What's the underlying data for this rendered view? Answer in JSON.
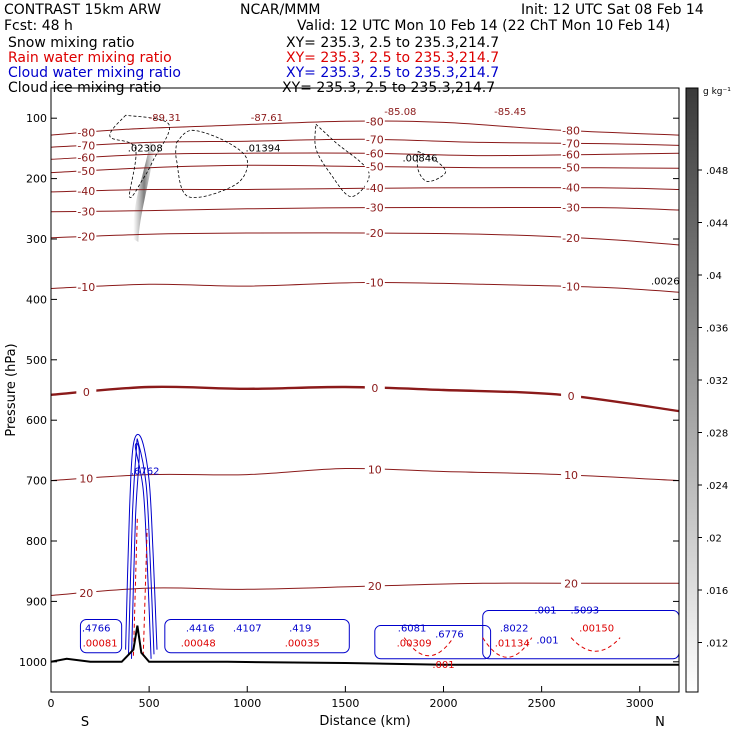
{
  "header": {
    "title_left": "CONTRAST 15km ARW",
    "fcst": "Fcst:    48 h",
    "center_top": "NCAR/MMM",
    "init": "Init: 12 UTC Sat 08 Feb 14",
    "valid": "Valid: 12 UTC Mon 10 Feb 14 (22 ChT Mon 10 Feb 14)"
  },
  "fields": [
    {
      "label": "Snow mixing ratio",
      "xy": "XY= 235.3,  2.5 to 235.3,214.7",
      "color": "#000000"
    },
    {
      "label": "Rain water mixing ratio",
      "xy": "XY= 235.3,  2.5 to 235.3,214.7",
      "color": "#dd0000"
    },
    {
      "label": "Cloud water mixing ratio",
      "xy": "XY= 235.3,  2.5 to 235.3,214.7",
      "color": "#0000cc"
    },
    {
      "label": "Cloud ice mixing ratio",
      "xy": "XY= 235.3,  2.5 to 235.3,214.7",
      "color": "#000000"
    }
  ],
  "colorbar": {
    "unit": "g kg⁻¹",
    "ticks": [
      ".048",
      ".044",
      ".04",
      ".036",
      ".032",
      ".028",
      ".024",
      ".02",
      ".016",
      ".012"
    ]
  },
  "chart_data": {
    "type": "cross-section",
    "xlabel": "Distance (km)",
    "ylabel": "Pressure (hPa)",
    "xlim": [
      0,
      3200
    ],
    "ylim": [
      1050,
      50
    ],
    "y_scale": "linear-inverted",
    "x_ticks": [
      0,
      500,
      1000,
      1500,
      2000,
      2500,
      3000
    ],
    "y_ticks": [
      100,
      200,
      300,
      400,
      500,
      600,
      700,
      800,
      900,
      1000
    ],
    "x_end_labels": [
      "S",
      "N"
    ],
    "temperature_contours": [
      {
        "label": "-80",
        "points": [
          [
            0,
            128
          ],
          [
            400,
            118
          ],
          [
            900,
            112
          ],
          [
            1500,
            105
          ],
          [
            2000,
            107
          ],
          [
            2600,
            120
          ],
          [
            3200,
            128
          ]
        ]
      },
      {
        "label": "-70",
        "points": [
          [
            0,
            148
          ],
          [
            500,
            140
          ],
          [
            1000,
            138
          ],
          [
            1600,
            135
          ],
          [
            2200,
            140
          ],
          [
            2800,
            142
          ],
          [
            3200,
            145
          ]
        ]
      },
      {
        "label": "-60",
        "points": [
          [
            0,
            168
          ],
          [
            500,
            160
          ],
          [
            1000,
            158
          ],
          [
            1600,
            158
          ],
          [
            2200,
            162
          ],
          [
            2800,
            160
          ],
          [
            3200,
            158
          ]
        ]
      },
      {
        "label": "-50",
        "points": [
          [
            0,
            190
          ],
          [
            500,
            182
          ],
          [
            1000,
            178
          ],
          [
            1600,
            180
          ],
          [
            2200,
            182
          ],
          [
            2800,
            182
          ],
          [
            3200,
            183
          ]
        ]
      },
      {
        "label": "-40",
        "points": [
          [
            0,
            222
          ],
          [
            500,
            218
          ],
          [
            1000,
            218
          ],
          [
            1600,
            216
          ],
          [
            2200,
            215
          ],
          [
            2800,
            215
          ],
          [
            3200,
            218
          ]
        ]
      },
      {
        "label": "-30",
        "points": [
          [
            0,
            255
          ],
          [
            500,
            253
          ],
          [
            1000,
            250
          ],
          [
            1600,
            248
          ],
          [
            2200,
            248
          ],
          [
            2800,
            248
          ],
          [
            3200,
            252
          ]
        ]
      },
      {
        "label": "-20",
        "points": [
          [
            0,
            298
          ],
          [
            500,
            292
          ],
          [
            1000,
            290
          ],
          [
            1600,
            290
          ],
          [
            2200,
            292
          ],
          [
            2800,
            300
          ],
          [
            3200,
            310
          ]
        ]
      },
      {
        "label": "-10",
        "points": [
          [
            0,
            382
          ],
          [
            500,
            375
          ],
          [
            1000,
            378
          ],
          [
            1600,
            372
          ],
          [
            2200,
            375
          ],
          [
            2800,
            380
          ],
          [
            3200,
            388
          ]
        ]
      },
      {
        "label": "0",
        "points": [
          [
            0,
            558
          ],
          [
            500,
            545
          ],
          [
            1000,
            548
          ],
          [
            1500,
            545
          ],
          [
            2000,
            550
          ],
          [
            2600,
            558
          ],
          [
            3200,
            585
          ]
        ]
      },
      {
        "label": "10",
        "points": [
          [
            0,
            700
          ],
          [
            500,
            690
          ],
          [
            1000,
            690
          ],
          [
            1500,
            680
          ],
          [
            2000,
            685
          ],
          [
            2600,
            690
          ],
          [
            3200,
            700
          ]
        ]
      },
      {
        "label": "20",
        "points": [
          [
            0,
            890
          ],
          [
            500,
            878
          ],
          [
            1000,
            880
          ],
          [
            1600,
            875
          ],
          [
            2200,
            870
          ],
          [
            2800,
            870
          ],
          [
            3200,
            870
          ]
        ]
      }
    ],
    "rain_labels": [
      {
        "label": ".00081",
        "x": 250,
        "p": 975
      },
      {
        "label": ".00048",
        "x": 750,
        "p": 975
      },
      {
        "label": ".00035",
        "x": 1280,
        "p": 975
      },
      {
        "label": ".00309",
        "x": 1850,
        "p": 975
      },
      {
        "label": ".01134",
        "x": 2350,
        "p": 975
      },
      {
        "label": ".00150",
        "x": 2780,
        "p": 950
      },
      {
        "label": ".001",
        "x": 2000,
        "p": 1010
      }
    ],
    "cloud_water_labels": [
      {
        "label": ".4766",
        "x": 230,
        "p": 950
      },
      {
        "label": ".4416",
        "x": 760,
        "p": 950
      },
      {
        "label": ".4107",
        "x": 1000,
        "p": 950
      },
      {
        "label": ".419",
        "x": 1270,
        "p": 950
      },
      {
        "label": ".6081",
        "x": 1840,
        "p": 950
      },
      {
        "label": ".6776",
        "x": 2030,
        "p": 960
      },
      {
        "label": ".8022",
        "x": 2360,
        "p": 950
      },
      {
        "label": ".5093",
        "x": 2720,
        "p": 920
      },
      {
        "label": ".6762",
        "x": 480,
        "p": 690
      },
      {
        "label": ".001",
        "x": 2520,
        "p": 920
      },
      {
        "label": ".001",
        "x": 2530,
        "p": 970
      }
    ],
    "snow_labels": [
      {
        "label": ".02308",
        "x": 480,
        "p": 155
      },
      {
        "label": ".01394",
        "x": 1080,
        "p": 155
      },
      {
        "label": ".00846",
        "x": 1880,
        "p": 172
      },
      {
        "label": ".0026",
        "x": 3130,
        "p": 375
      }
    ],
    "min_labels": [
      {
        "label": "-89.31",
        "x": 580,
        "p": 105
      },
      {
        "label": "-87.61",
        "x": 1100,
        "p": 105
      },
      {
        "label": "-85.08",
        "x": 1780,
        "p": 95
      },
      {
        "label": "-85.45",
        "x": 2340,
        "p": 95
      }
    ]
  }
}
